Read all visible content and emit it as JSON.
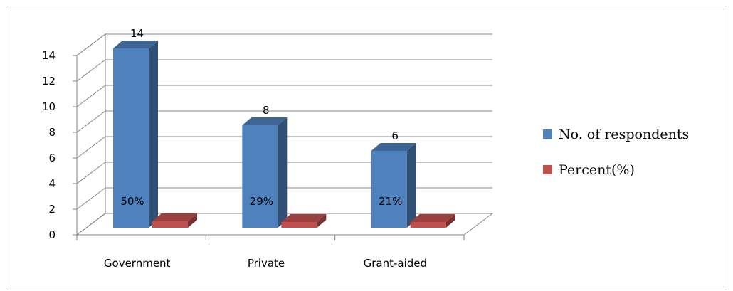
{
  "chart_data": {
    "type": "bar",
    "categories": [
      "Government",
      "Private",
      "Grant-aided"
    ],
    "series": [
      {
        "name": "No. of respondents",
        "values": [
          14,
          8,
          6
        ],
        "data_labels": [
          "14",
          "8",
          "6"
        ],
        "inner_labels": [
          "50%",
          "29%",
          "21%"
        ],
        "color": "#4F81BD"
      },
      {
        "name": "Percent(%)",
        "values": [
          0.5,
          0.29,
          0.21
        ],
        "color": "#C0504D"
      }
    ],
    "y_ticks": [
      "0",
      "2",
      "4",
      "6",
      "8",
      "10",
      "12",
      "14"
    ],
    "ylim": [
      0,
      14
    ],
    "grid": true,
    "legend_position": "right",
    "style": "3d-clustered-column"
  }
}
